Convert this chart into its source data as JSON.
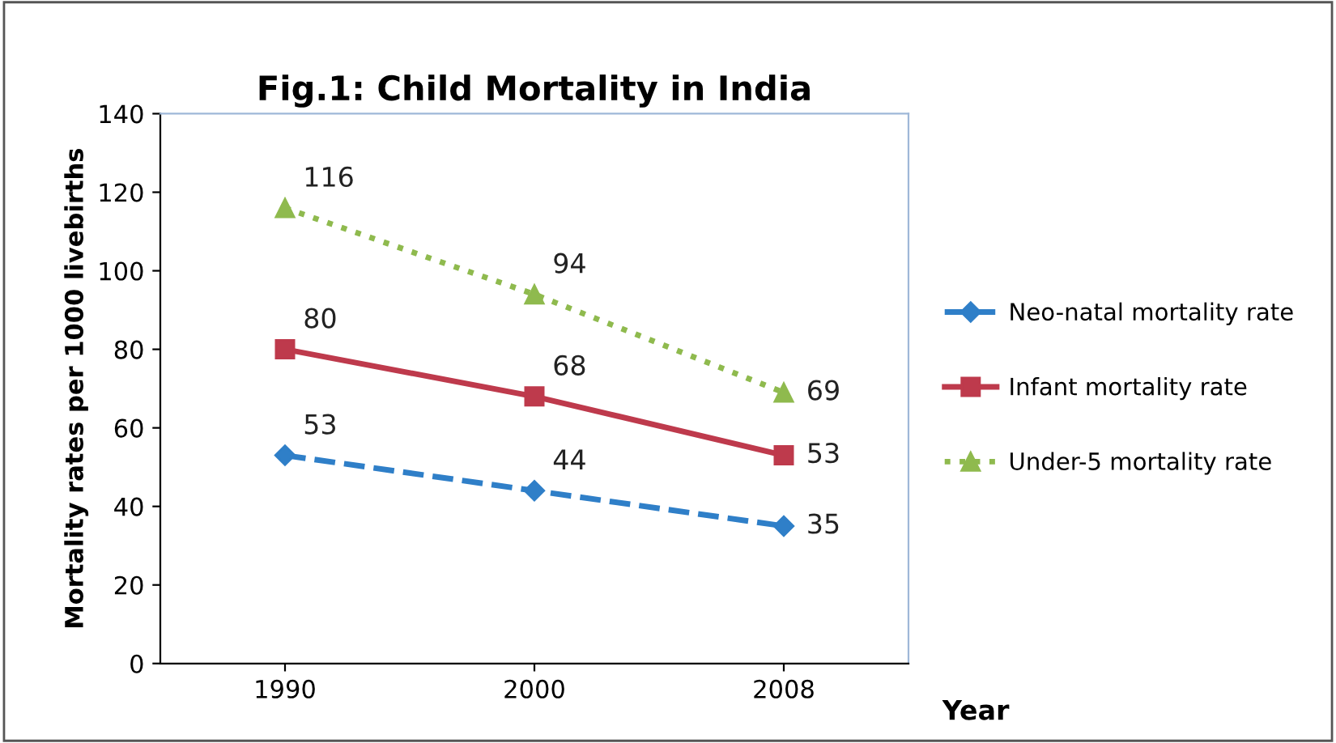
{
  "chart_data": {
    "type": "line",
    "title": "Fig.1: Child Mortality in India",
    "ylabel": "Mortality rates per 1000 livebirths",
    "xlabel": "Year",
    "categories": [
      "1990",
      "2000",
      "2008"
    ],
    "series": [
      {
        "name": "Neo-natal mortality rate",
        "color": "#2f7fc8",
        "values": [
          53,
          44,
          35
        ],
        "marker": "diamond",
        "line_style": "dashed"
      },
      {
        "name": "Infant mortality rate",
        "color": "#be3a4c",
        "values": [
          80,
          68,
          53
        ],
        "marker": "square",
        "line_style": "solid"
      },
      {
        "name": "Under-5 mortality rate",
        "color": "#8fba4e",
        "values": [
          116,
          94,
          69
        ],
        "marker": "triangle",
        "line_style": "dotted"
      }
    ],
    "ylim": [
      0,
      140
    ],
    "yticks": [
      0,
      20,
      40,
      60,
      80,
      100,
      120,
      140
    ],
    "grid": false,
    "legend": "right",
    "data_labels": true
  }
}
